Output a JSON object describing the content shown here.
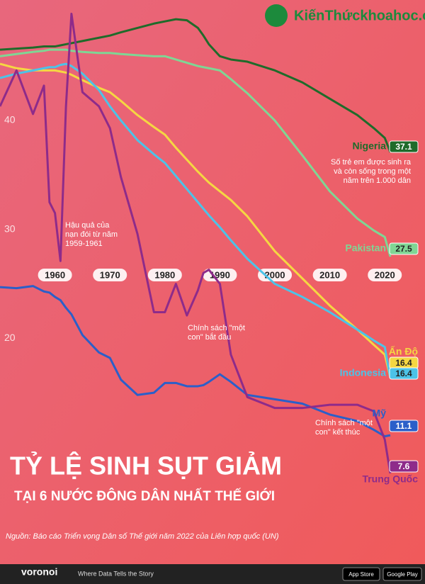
{
  "brand": "KiếnThứckhoahoc.org",
  "chart_data": {
    "type": "line",
    "title": "TỶ LỆ SINH SỤT GIẢM",
    "subtitle": "TẠI 6 NƯỚC ĐÔNG DÂN NHẤT THẾ GIỚI",
    "source": "Nguồn: Báo cáo Triển vọng Dân số Thế giới năm 2022 của Liên hợp quốc (UN)",
    "unit_note": [
      "Số trẻ em được sinh ra",
      "và còn sống trong một",
      "năm trên 1.000 dân"
    ],
    "annotations": [
      [
        "Hậu quả của",
        "nạn đói từ năm",
        "1959-1961"
      ],
      [
        "Chính sách \"một",
        "con\" bắt đầu"
      ],
      [
        "Chính sách \"một",
        "con\" kết thúc"
      ]
    ],
    "x": [
      1950,
      1953,
      1956,
      1958,
      1959,
      1960,
      1961,
      1962,
      1963,
      1965,
      1968,
      1970,
      1972,
      1975,
      1978,
      1980,
      1982,
      1984,
      1986,
      1987,
      1988,
      1990,
      1992,
      1995,
      2000,
      2005,
      2010,
      2015,
      2018,
      2020,
      2021
    ],
    "xlim": [
      1950,
      2021
    ],
    "xticks": [
      1960,
      1970,
      1980,
      1990,
      2000,
      2010,
      2020
    ],
    "ylim": [
      10,
      51
    ],
    "yticks": [
      20,
      30,
      40
    ],
    "series": [
      {
        "name": "Nigeria",
        "color": "#1f6b2a",
        "values": [
          46.5,
          46.6,
          46.7,
          46.8,
          46.8,
          46.8,
          46.9,
          47.0,
          47.1,
          47.3,
          47.6,
          47.8,
          48.1,
          48.5,
          48.9,
          49.1,
          49.3,
          49.2,
          48.5,
          47.8,
          47.0,
          45.9,
          45.6,
          45.4,
          44.6,
          43.5,
          42.0,
          40.5,
          39.3,
          38.4,
          37.1
        ]
      },
      {
        "name": "Pakistan",
        "color": "#7fd694",
        "values": [
          45.9,
          46.1,
          46.3,
          46.4,
          46.5,
          46.5,
          46.5,
          46.5,
          46.4,
          46.3,
          46.2,
          46.2,
          46.1,
          46.0,
          45.9,
          45.9,
          45.6,
          45.3,
          45.0,
          44.9,
          44.8,
          44.6,
          43.8,
          42.5,
          40.0,
          36.8,
          33.5,
          31.0,
          29.9,
          29.3,
          27.5
        ]
      },
      {
        "name": "Ấn Độ",
        "color": "#f5d742",
        "values": [
          45.2,
          44.8,
          44.6,
          44.6,
          44.6,
          44.6,
          44.5,
          44.4,
          44.2,
          43.7,
          43.0,
          42.6,
          41.8,
          40.5,
          39.4,
          38.7,
          37.5,
          36.4,
          35.3,
          34.8,
          34.3,
          33.5,
          32.7,
          31.2,
          28.0,
          25.5,
          23.0,
          20.8,
          19.4,
          18.5,
          16.4
        ]
      },
      {
        "name": "Indonesia",
        "color": "#4cc3e8",
        "values": [
          43.9,
          44.3,
          44.6,
          44.8,
          44.9,
          44.9,
          45.1,
          45.2,
          45.0,
          44.3,
          42.8,
          41.3,
          40.0,
          38.2,
          36.9,
          36.1,
          34.9,
          33.7,
          32.5,
          31.9,
          31.3,
          30.2,
          29.0,
          27.3,
          25.0,
          23.8,
          22.4,
          20.8,
          19.8,
          19.2,
          16.4
        ]
      },
      {
        "name": "Mỹ",
        "color": "#2b5fc9",
        "values": [
          24.7,
          24.6,
          24.8,
          24.3,
          24.2,
          23.8,
          23.5,
          22.8,
          22.2,
          20.3,
          18.7,
          18.2,
          16.2,
          14.8,
          15.0,
          15.9,
          15.9,
          15.6,
          15.6,
          15.7,
          16.0,
          16.7,
          16.0,
          14.8,
          14.4,
          14.0,
          13.0,
          12.4,
          11.6,
          11.0,
          11.1
        ]
      },
      {
        "name": "Trung Quốc",
        "color": "#8e2b8a",
        "values": [
          41.3,
          44.6,
          40.6,
          43.2,
          32.5,
          31.5,
          27.1,
          41.3,
          49.8,
          42.6,
          41.3,
          39.3,
          34.8,
          29.6,
          22.4,
          22.4,
          25.0,
          22.1,
          24.4,
          26.0,
          26.3,
          25.0,
          18.5,
          14.6,
          13.6,
          13.6,
          13.9,
          13.9,
          13.3,
          10.7,
          7.6
        ]
      }
    ]
  },
  "footer": {
    "logo": "voronoi",
    "tagline": "Where Data Tells the Story",
    "badges": [
      "App Store",
      "Google Play"
    ]
  }
}
